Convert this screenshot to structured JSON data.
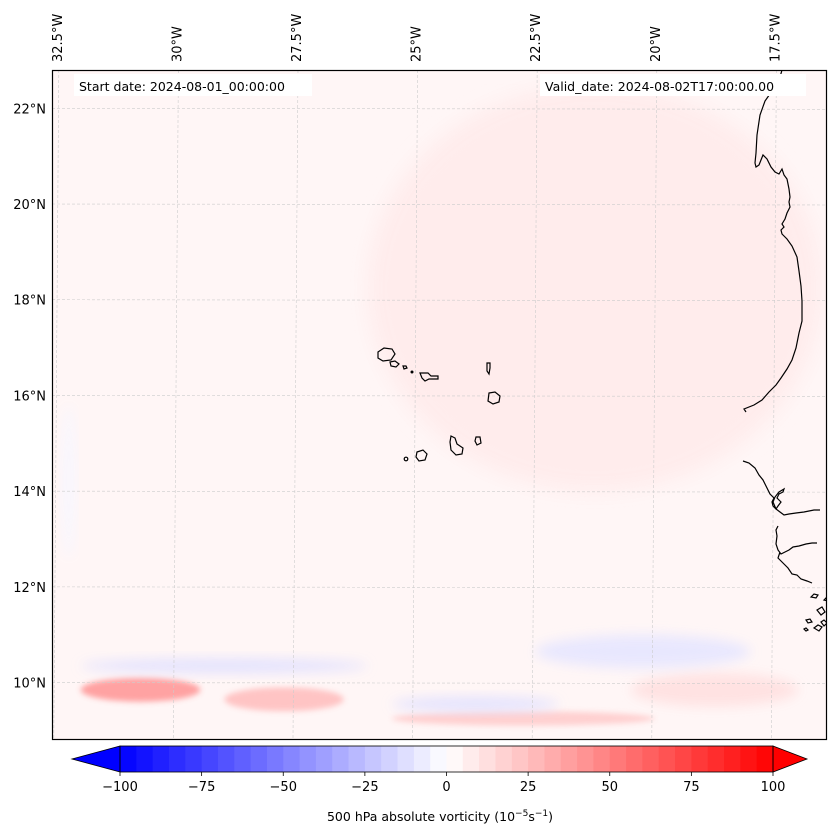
{
  "chart_data": {
    "type": "heatmap",
    "title": "",
    "field": "500 hPa absolute vorticity",
    "units": "10^-5 s^-1",
    "annotations": {
      "start_date": "Start date: 2024-08-01_00:00:00",
      "valid_date": "Valid_date: 2024-08-02T17:00:00.00"
    },
    "lon_ticks": [
      {
        "value": -32.5,
        "label": "32.5°W"
      },
      {
        "value": -30.0,
        "label": "30°W"
      },
      {
        "value": -27.5,
        "label": "27.5°W"
      },
      {
        "value": -25.0,
        "label": "25°W"
      },
      {
        "value": -22.5,
        "label": "22.5°W"
      },
      {
        "value": -20.0,
        "label": "20°W"
      },
      {
        "value": -17.5,
        "label": "17.5°W"
      }
    ],
    "lat_ticks": [
      {
        "value": 22,
        "label": "22°N"
      },
      {
        "value": 20,
        "label": "20°N"
      },
      {
        "value": 18,
        "label": "18°N"
      },
      {
        "value": 16,
        "label": "16°N"
      },
      {
        "value": 14,
        "label": "14°N"
      },
      {
        "value": 12,
        "label": "12°N"
      },
      {
        "value": 10,
        "label": "10°N"
      }
    ],
    "extent": {
      "lon": [
        -32.6,
        -16.4
      ],
      "lat": [
        8.8,
        22.8
      ]
    },
    "grid": true,
    "colorbar": {
      "orientation": "horizontal",
      "placement": "bottom",
      "label": "500 hPa absolute vorticity (10⁻⁵s⁻¹)",
      "label_main": "500 hPa absolute vorticity (10",
      "label_exp1": "−5",
      "label_mid": "s",
      "label_exp2": "−1",
      "label_end": ")",
      "vmin": -100,
      "vmax": 100,
      "step": 5,
      "extend": "both",
      "colormap": "bwr",
      "ticks": [
        {
          "value": -100,
          "label": "−100"
        },
        {
          "value": -75,
          "label": "−75"
        },
        {
          "value": -50,
          "label": "−50"
        },
        {
          "value": -25,
          "label": "−25"
        },
        {
          "value": 0,
          "label": "0"
        },
        {
          "value": 25,
          "label": "25"
        },
        {
          "value": 50,
          "label": "50"
        },
        {
          "value": 75,
          "label": "75"
        },
        {
          "value": 100,
          "label": "100"
        }
      ],
      "under_color": "#0000ff",
      "over_color": "#ff0000"
    },
    "features": [
      {
        "name": "Cape Verde Islands",
        "type": "coastline"
      },
      {
        "name": "West African coast (Mauritania, Senegal, Gambia, Guinea-Bissau)",
        "type": "coastline"
      }
    ],
    "field_regions": [
      {
        "desc": "background weak positive vorticity",
        "lon": [
          -32.5,
          -16.5
        ],
        "lat": [
          9,
          22.5
        ],
        "value": 3
      },
      {
        "desc": "broad positive band NE",
        "lon": [
          -26,
          -16.5
        ],
        "lat": [
          14,
          22.5
        ],
        "value": 8
      },
      {
        "desc": "strong positive maximum west",
        "lon": [
          -32,
          -29.5
        ],
        "lat": [
          9.6,
          10.1
        ],
        "value": 40
      },
      {
        "desc": "positive maximum central-west",
        "lon": [
          -29,
          -26.5
        ],
        "lat": [
          9.4,
          9.9
        ],
        "value": 25
      },
      {
        "desc": "positive band south-central",
        "lon": [
          -25.5,
          -20
        ],
        "lat": [
          9.1,
          9.4
        ],
        "value": 20
      },
      {
        "desc": "positive band southeast",
        "lon": [
          -20.5,
          -17
        ],
        "lat": [
          9.5,
          10.2
        ],
        "value": 12
      },
      {
        "desc": "negative band west",
        "lon": [
          -32,
          -26
        ],
        "lat": [
          10.2,
          10.5
        ],
        "value": -12
      },
      {
        "desc": "negative band central",
        "lon": [
          -25.5,
          -22
        ],
        "lat": [
          9.4,
          9.7
        ],
        "value": -12
      },
      {
        "desc": "negative band east",
        "lon": [
          -22.5,
          -18
        ],
        "lat": [
          10.3,
          11
        ],
        "value": -10
      },
      {
        "desc": "weak negative strip west",
        "lon": [
          -32.4,
          -32.1
        ],
        "lat": [
          12.6,
          15.8
        ],
        "value": -3
      }
    ]
  }
}
